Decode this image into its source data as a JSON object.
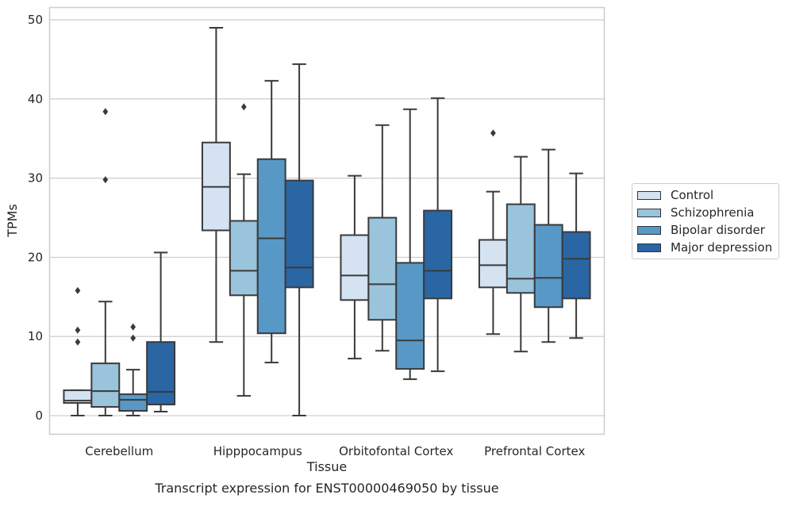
{
  "caption": "Transcript expression for ENST00000469050 by tissue",
  "chart_data": {
    "type": "box",
    "xlabel": "Tissue",
    "ylabel": "TPMs",
    "ylim": [
      -2.3,
      51.5
    ],
    "yticks": [
      0,
      10,
      20,
      30,
      40,
      50
    ],
    "grid": "horizontal",
    "legend_position": "right",
    "categories": [
      "Cerebellum",
      "Hipppocampus",
      "Orbitofontal Cortex",
      "Prefrontal Cortex"
    ],
    "series": [
      {
        "name": "Control",
        "color": "#d4e2f2",
        "boxes": [
          {
            "whisker_low": 0.0,
            "q1": 1.6,
            "median": 1.9,
            "q3": 3.2,
            "whisker_high": 3.2,
            "outliers": [
              9.3,
              10.8,
              15.8
            ]
          },
          {
            "whisker_low": 9.3,
            "q1": 23.4,
            "median": 28.9,
            "q3": 34.5,
            "whisker_high": 49.0,
            "outliers": []
          },
          {
            "whisker_low": 7.2,
            "q1": 14.6,
            "median": 17.7,
            "q3": 22.8,
            "whisker_high": 30.3,
            "outliers": []
          },
          {
            "whisker_low": 10.3,
            "q1": 16.2,
            "median": 19.0,
            "q3": 22.2,
            "whisker_high": 28.3,
            "outliers": [
              35.7
            ]
          }
        ]
      },
      {
        "name": "Schizophrenia",
        "color": "#9ac3dc",
        "boxes": [
          {
            "whisker_low": 0.0,
            "q1": 1.1,
            "median": 3.1,
            "q3": 6.6,
            "whisker_high": 14.4,
            "outliers": [
              29.8,
              38.4
            ]
          },
          {
            "whisker_low": 2.5,
            "q1": 15.2,
            "median": 18.3,
            "q3": 24.6,
            "whisker_high": 30.5,
            "outliers": [
              39.0
            ]
          },
          {
            "whisker_low": 8.2,
            "q1": 12.1,
            "median": 16.6,
            "q3": 25.0,
            "whisker_high": 36.7,
            "outliers": []
          },
          {
            "whisker_low": 8.1,
            "q1": 15.5,
            "median": 17.3,
            "q3": 26.7,
            "whisker_high": 32.7,
            "outliers": []
          }
        ]
      },
      {
        "name": "Bipolar disorder",
        "color": "#5898c6",
        "boxes": [
          {
            "whisker_low": 0.0,
            "q1": 0.6,
            "median": 2.0,
            "q3": 2.7,
            "whisker_high": 5.8,
            "outliers": [
              9.8,
              11.2
            ]
          },
          {
            "whisker_low": 6.7,
            "q1": 10.4,
            "median": 22.4,
            "q3": 32.4,
            "whisker_high": 42.3,
            "outliers": []
          },
          {
            "whisker_low": 4.6,
            "q1": 5.9,
            "median": 9.5,
            "q3": 19.3,
            "whisker_high": 38.7,
            "outliers": []
          },
          {
            "whisker_low": 9.3,
            "q1": 13.7,
            "median": 17.4,
            "q3": 24.1,
            "whisker_high": 33.6,
            "outliers": []
          }
        ]
      },
      {
        "name": "Major depression",
        "color": "#2a66a4",
        "boxes": [
          {
            "whisker_low": 0.5,
            "q1": 1.4,
            "median": 3.0,
            "q3": 9.3,
            "whisker_high": 20.6,
            "outliers": []
          },
          {
            "whisker_low": 0.0,
            "q1": 16.2,
            "median": 18.7,
            "q3": 29.7,
            "whisker_high": 44.4,
            "outliers": []
          },
          {
            "whisker_low": 5.6,
            "q1": 14.8,
            "median": 18.3,
            "q3": 25.9,
            "whisker_high": 40.1,
            "outliers": []
          },
          {
            "whisker_low": 9.8,
            "q1": 14.8,
            "median": 19.8,
            "q3": 23.2,
            "whisker_high": 30.6,
            "outliers": []
          }
        ]
      }
    ]
  }
}
